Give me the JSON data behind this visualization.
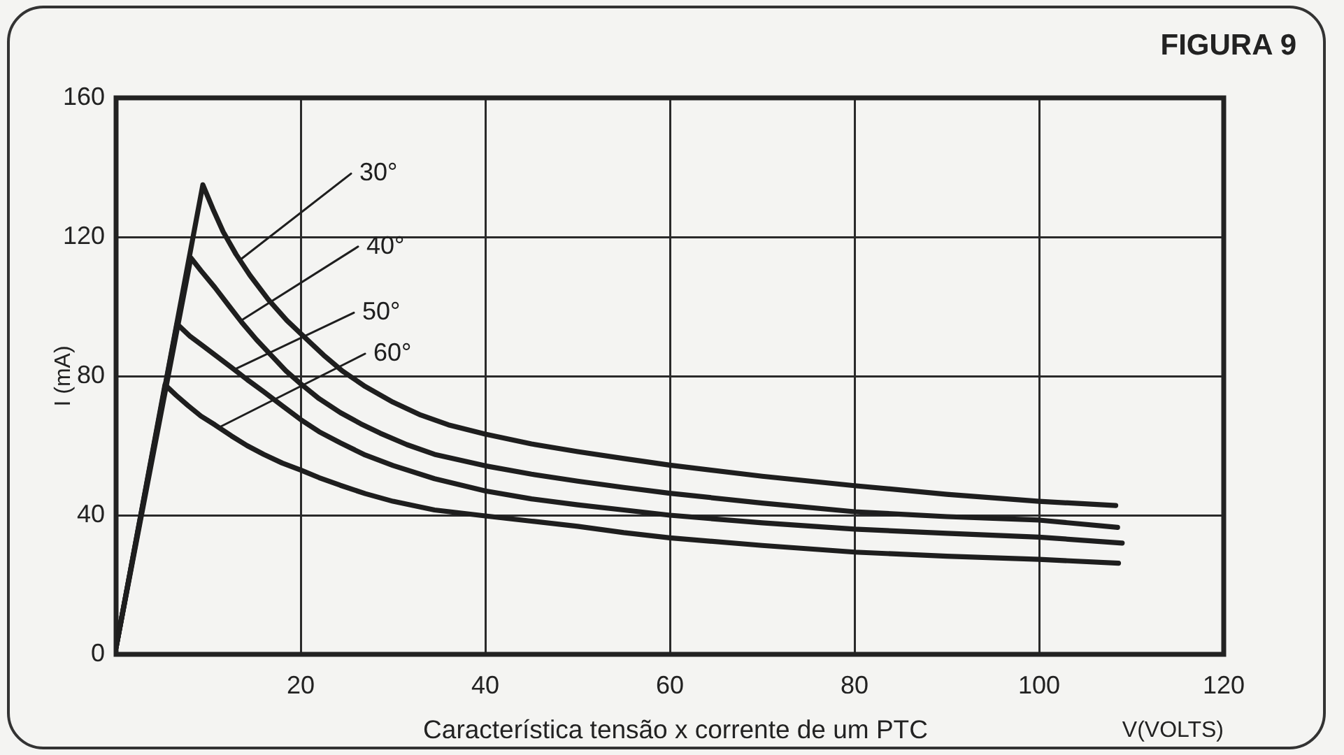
{
  "chart_data": {
    "type": "line",
    "title": "FIGURA 9",
    "xlabel": "V(VOLTS)",
    "ylabel": "I (mA)",
    "annotations": [
      "Característica tensão x corrente de um PTC"
    ],
    "series": [
      {
        "name": "30°",
        "color": "#1e1e1e",
        "x": [
          0,
          9.4,
          10.5,
          11.6,
          13,
          14.5,
          16.5,
          18.5,
          20.5,
          22.5,
          24.5,
          27,
          30,
          33,
          36,
          40,
          45,
          50,
          55,
          60,
          70,
          80,
          90,
          100,
          108.3
        ],
        "values": [
          2,
          135,
          128,
          121.5,
          115,
          109,
          102,
          96,
          91,
          86,
          81.5,
          77,
          72.5,
          68.8,
          66,
          63.3,
          60.5,
          58.3,
          56.3,
          54.4,
          51.2,
          48.5,
          46,
          44,
          42.8
        ]
      },
      {
        "name": "40°",
        "color": "#1e1e1e",
        "x": [
          0,
          8.1,
          9.2,
          10.7,
          12.2,
          13.6,
          15.2,
          16.8,
          18.4,
          20,
          22,
          24.3,
          26.5,
          28.6,
          31.5,
          34.5,
          40,
          45,
          50,
          55,
          60,
          70,
          80,
          90,
          100,
          108.5
        ],
        "values": [
          2,
          114,
          110.3,
          105.5,
          100.3,
          95.5,
          90.5,
          86,
          81.5,
          77.8,
          73.5,
          69.5,
          66.3,
          63.6,
          60.3,
          57.5,
          54.2,
          51.8,
          49.8,
          48,
          46.3,
          43.5,
          41,
          39.6,
          38.6,
          36.5
        ]
      },
      {
        "name": "50°",
        "color": "#1e1e1e",
        "x": [
          0,
          6.6,
          8,
          9.5,
          11,
          12.5,
          14.2,
          16,
          18,
          20,
          22,
          24.3,
          27,
          30,
          34.5,
          40,
          45,
          50,
          55,
          60,
          70,
          80,
          90,
          100,
          109
        ],
        "values": [
          2,
          95,
          91.5,
          88.5,
          85.5,
          82.5,
          79,
          75.5,
          71.5,
          67.5,
          64,
          60.8,
          57.3,
          54.3,
          50.5,
          47,
          44.7,
          43,
          41.5,
          40,
          37.8,
          36,
          34.8,
          33.7,
          32
        ]
      },
      {
        "name": "60°",
        "color": "#1e1e1e",
        "x": [
          0,
          5.3,
          6.5,
          7.8,
          9.2,
          10.7,
          12.5,
          14.2,
          16,
          18,
          20,
          22,
          24.3,
          27,
          30,
          34.5,
          40,
          45,
          50,
          55,
          60,
          70,
          80,
          90,
          100,
          108.6
        ],
        "values": [
          2,
          77.5,
          74.5,
          71.5,
          68.5,
          66,
          62.8,
          60,
          57.5,
          55,
          53,
          50.8,
          48.6,
          46.2,
          44,
          41.5,
          39.8,
          38.3,
          36.8,
          35,
          33.5,
          31.3,
          29.4,
          28.2,
          27.3,
          26.2
        ]
      }
    ],
    "xlim": [
      0,
      120
    ],
    "xticks": [
      {
        "value": 0,
        "label": null
      },
      20,
      40,
      60,
      80,
      100,
      120
    ],
    "ylim": [
      0,
      160
    ],
    "yticks": [
      0,
      40,
      80,
      120,
      160
    ],
    "grid": true,
    "legend": false,
    "marker": "none",
    "line_style": "solid"
  }
}
